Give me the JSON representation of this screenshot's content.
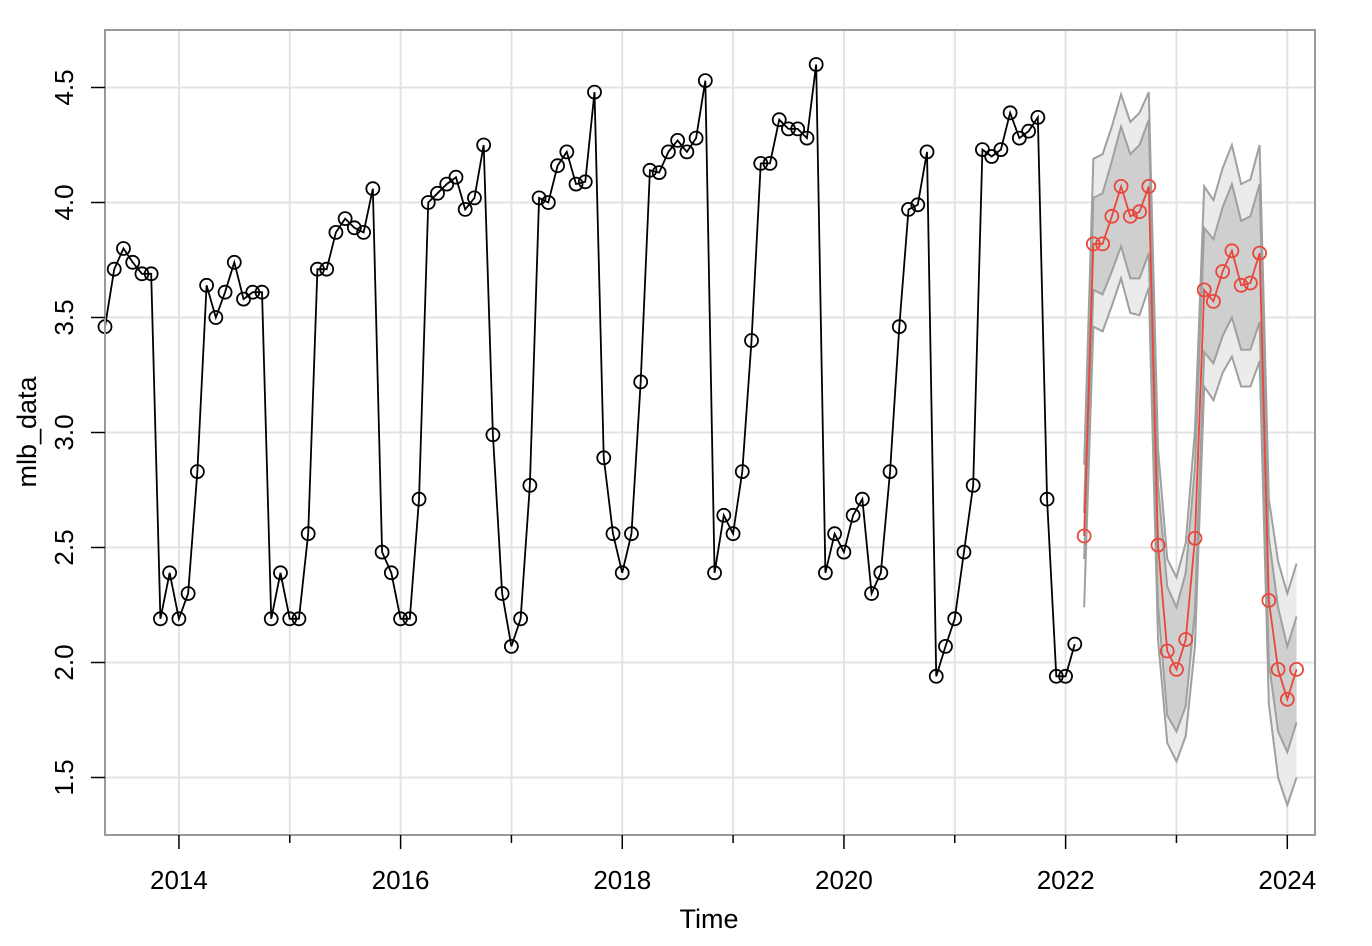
{
  "chart_data": {
    "type": "line",
    "title": "",
    "xlabel": "Time",
    "ylabel": "mlb_data",
    "xlim": [
      2013.333,
      2024.25
    ],
    "ylim": [
      1.25,
      4.75
    ],
    "grid": true,
    "x_ticks": [
      2014,
      2016,
      2018,
      2020,
      2022,
      2024
    ],
    "x_tick_labels": [
      "2014",
      "2016",
      "2018",
      "2020",
      "2022",
      "2024"
    ],
    "x_minor_ticks": [
      2015,
      2017,
      2019,
      2021,
      2023
    ],
    "y_ticks": [
      1.5,
      2.0,
      2.5,
      3.0,
      3.5,
      4.0,
      4.5
    ],
    "y_tick_labels": [
      "1.5",
      "2.0",
      "2.5",
      "3.0",
      "3.5",
      "4.0",
      "4.5"
    ],
    "colors": {
      "observed": "#000000",
      "forecast": "#e8473b",
      "band_inner": "#cfcfcf",
      "band_outer": "#ebebeb",
      "band_line": "#a0a0a0",
      "grid": "#e3e3e3",
      "frame": "#999999"
    },
    "series": [
      {
        "kind": "observed",
        "start": 2013.333,
        "step": 0.08333,
        "values": [
          3.46,
          3.71,
          3.8,
          3.74,
          3.69,
          3.69,
          2.19,
          2.39,
          2.19,
          2.3,
          2.83,
          3.64,
          3.5,
          3.61,
          3.74,
          3.58,
          3.61,
          3.61,
          2.19,
          2.39,
          2.19,
          2.19,
          2.56,
          3.71,
          3.71,
          3.87,
          3.93,
          3.89,
          3.87,
          4.06,
          2.48,
          2.39,
          2.19,
          2.19,
          2.71,
          4.0,
          4.04,
          4.08,
          4.11,
          3.97,
          4.02,
          4.25,
          2.99,
          2.3,
          2.07,
          2.19,
          2.77,
          4.02,
          4.0,
          4.16,
          4.22,
          4.08,
          4.09,
          4.48,
          2.89,
          2.56,
          2.39,
          2.56,
          3.22,
          4.14,
          4.13,
          4.22,
          4.27,
          4.22,
          4.28,
          4.53,
          2.39,
          2.64,
          2.56,
          2.83,
          3.4,
          4.17,
          4.17,
          4.36,
          4.32,
          4.32,
          4.28,
          4.6,
          2.39,
          2.56,
          2.48,
          2.64,
          2.71,
          2.3,
          2.39,
          2.83,
          3.46,
          3.97,
          3.99,
          4.22,
          1.94,
          2.07,
          2.19,
          2.48,
          2.77,
          4.23,
          4.2,
          4.23,
          4.39,
          4.28,
          4.31,
          4.37,
          2.71,
          1.94,
          1.94,
          2.08
        ]
      },
      {
        "kind": "forecast",
        "start": 2022.167,
        "step": 0.08333,
        "values": [
          2.55,
          3.82,
          3.82,
          3.94,
          4.07,
          3.94,
          3.96,
          4.07,
          2.51,
          2.05,
          1.97,
          2.1,
          2.54,
          3.62,
          3.57,
          3.7,
          3.79,
          3.64,
          3.65,
          3.78,
          2.27,
          1.97,
          1.84,
          1.97
        ],
        "lo80": [
          2.45,
          3.62,
          3.6,
          3.7,
          3.81,
          3.67,
          3.67,
          3.78,
          2.25,
          1.77,
          1.7,
          1.81,
          2.23,
          3.35,
          3.3,
          3.42,
          3.5,
          3.36,
          3.36,
          3.48,
          2.0,
          1.7,
          1.61,
          1.74
        ],
        "hi80": [
          2.65,
          4.02,
          4.04,
          4.18,
          4.33,
          4.21,
          4.25,
          4.36,
          2.77,
          2.33,
          2.24,
          2.39,
          2.85,
          3.89,
          3.84,
          3.98,
          4.08,
          3.92,
          3.94,
          4.08,
          2.54,
          2.24,
          2.07,
          2.2
        ],
        "lo95": [
          2.24,
          3.46,
          3.44,
          3.55,
          3.67,
          3.52,
          3.51,
          3.63,
          2.1,
          1.65,
          1.57,
          1.68,
          2.07,
          3.2,
          3.14,
          3.26,
          3.33,
          3.2,
          3.2,
          3.31,
          1.82,
          1.5,
          1.38,
          1.5
        ],
        "hi95": [
          2.86,
          4.19,
          4.21,
          4.33,
          4.47,
          4.35,
          4.39,
          4.48,
          2.93,
          2.45,
          2.37,
          2.52,
          3.01,
          4.07,
          4.01,
          4.15,
          4.25,
          4.08,
          4.1,
          4.25,
          2.71,
          2.44,
          2.3,
          2.43
        ]
      }
    ]
  }
}
